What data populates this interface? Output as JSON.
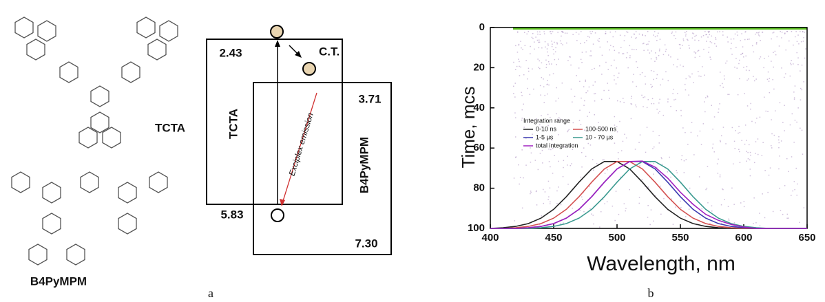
{
  "panel_a": {
    "molecules": [
      "TCTA",
      "B4PyMPM"
    ],
    "levels": [
      "2.43",
      "3.71",
      "5.83",
      "7.30"
    ],
    "ct": "C.T.",
    "boxes": [
      "TCTA",
      "B4PyMPM"
    ],
    "emission": "Exciplex emission",
    "caption": "a"
  },
  "panel_b": {
    "caption": "b"
  },
  "chart_data": {
    "type": "line",
    "xlabel": "Wavelength, nm",
    "ylabel": "Time, mcs",
    "legend_title": "Integration range",
    "x": [
      400,
      410,
      420,
      430,
      440,
      450,
      460,
      470,
      480,
      490,
      500,
      510,
      520,
      530,
      540,
      550,
      560,
      570,
      580,
      590,
      600,
      610,
      620,
      630,
      640,
      650
    ],
    "series": [
      {
        "name": "0-10 ns",
        "color": "#222222",
        "values": [
          100,
          99.7,
          99,
          97.6,
          94.9,
          90.5,
          84.2,
          77,
          70.4,
          66.7,
          66.7,
          70.4,
          77,
          84.2,
          90.5,
          94.9,
          97.6,
          99,
          99.7,
          100,
          100,
          100,
          100,
          100,
          100,
          100
        ]
      },
      {
        "name": "100-500 ns",
        "color": "#d45050",
        "values": [
          100,
          100,
          99.7,
          99,
          97.6,
          94.9,
          90.5,
          84.2,
          77,
          70.4,
          66.7,
          66.7,
          70.4,
          77,
          84.2,
          90.5,
          94.9,
          97.6,
          99,
          99.7,
          100,
          100,
          100,
          100,
          100,
          100
        ]
      },
      {
        "name": "1-5 µs",
        "color": "#3a3ab0",
        "values": [
          100,
          100,
          100,
          99.7,
          99,
          97.6,
          94.9,
          90.5,
          84.2,
          77,
          70.4,
          66.7,
          66.7,
          70.4,
          77,
          84.2,
          90.5,
          94.9,
          97.6,
          99,
          99.7,
          100,
          100,
          100,
          100,
          100
        ]
      },
      {
        "name": "10 - 70 µs",
        "color": "#3a9a90",
        "values": [
          100,
          100,
          100,
          100,
          99.7,
          99,
          97.6,
          94.9,
          90.5,
          84.2,
          77,
          70.4,
          66.7,
          66.7,
          70.4,
          77,
          84.2,
          90.5,
          94.9,
          97.6,
          99,
          99.7,
          100,
          100,
          100,
          100
        ]
      },
      {
        "name": "total integration",
        "color": "#a020c0",
        "values": [
          100,
          100,
          100,
          99.7,
          99,
          97.6,
          94.9,
          90.5,
          84.2,
          77,
          70.4,
          66.7,
          66.5,
          69.5,
          75,
          82,
          88,
          93,
          96,
          98,
          99.3,
          100,
          100,
          100,
          100,
          100
        ]
      }
    ],
    "xlim": [
      400,
      650
    ],
    "ylim": [
      100,
      0
    ],
    "xticks": [
      400,
      450,
      500,
      550,
      600,
      650
    ],
    "yticks": [
      0,
      20,
      40,
      60,
      80,
      100
    ]
  }
}
